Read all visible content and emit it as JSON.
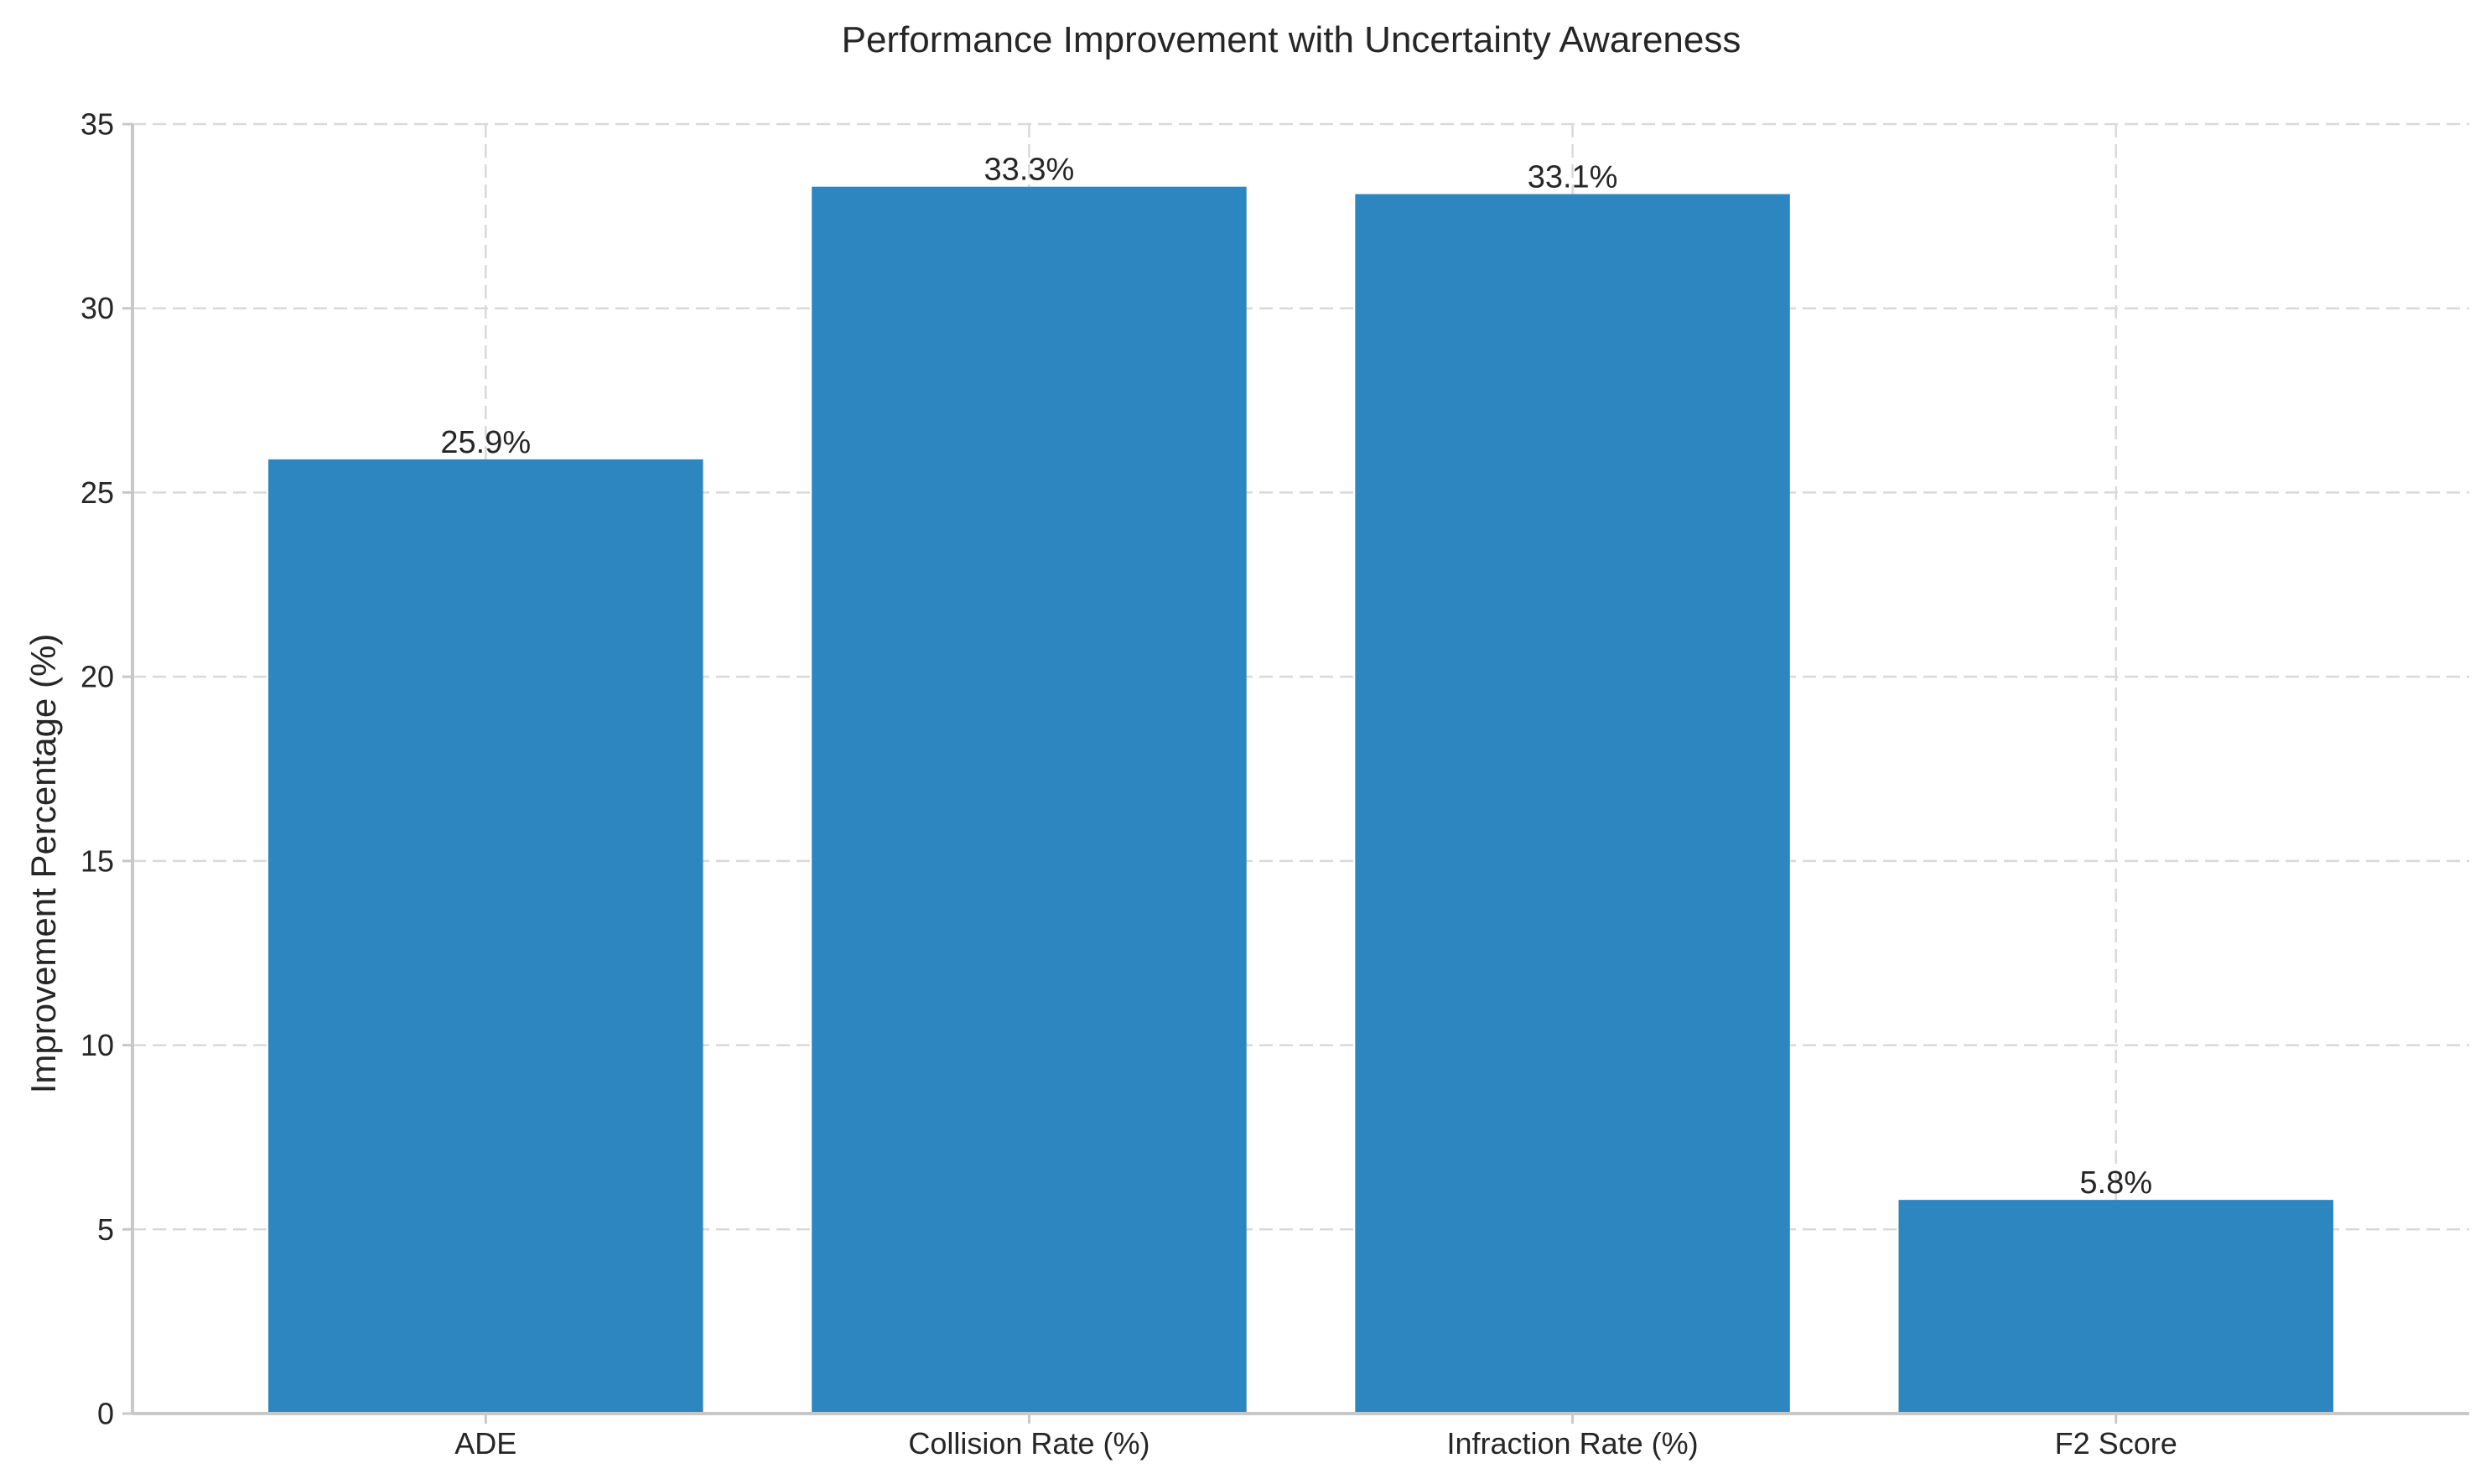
{
  "chart_data": {
    "type": "bar",
    "title": "Performance Improvement with Uncertainty Awareness",
    "xlabel": "",
    "ylabel": "Improvement Percentage (%)",
    "categories": [
      "ADE",
      "Collision Rate (%)",
      "Infraction Rate (%)",
      "F2 Score"
    ],
    "values": [
      25.9,
      33.3,
      33.1,
      5.8
    ],
    "data_labels": [
      "25.9%",
      "33.3%",
      "33.1%",
      "5.8%"
    ],
    "ylim": [
      0,
      35
    ],
    "yticks": [
      0,
      5,
      10,
      15,
      20,
      25,
      30,
      35
    ],
    "ytick_labels": [
      "0",
      "5",
      "10",
      "15",
      "20",
      "25",
      "30",
      "35"
    ],
    "grid": true,
    "bar_color": "#2e86c1"
  }
}
